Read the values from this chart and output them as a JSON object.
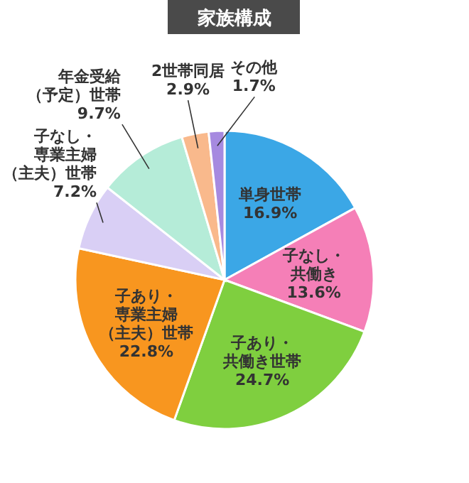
{
  "chart_data": {
    "type": "pie",
    "title": "家族構成",
    "categories": [
      "単身世帯",
      "子なし・共働き",
      "子あり・共働き世帯",
      "子あり・専業主婦（主夫）世帯",
      "子なし・専業主婦（主夫）世帯",
      "年金受給（予定）世帯",
      "2世帯同居",
      "その他"
    ],
    "values": [
      16.9,
      13.6,
      24.7,
      22.8,
      7.2,
      9.7,
      2.9,
      1.7
    ],
    "value_labels": [
      "16.9%",
      "13.6%",
      "24.7%",
      "22.8%",
      "7.2%",
      "9.7%",
      "2.9%",
      "1.7%"
    ],
    "colors": [
      "#3ba7e6",
      "#f57fb7",
      "#7fcf3f",
      "#f8961f",
      "#d9cff5",
      "#b5ecd8",
      "#f9b98c",
      "#a68ae0"
    ],
    "legend": false
  }
}
